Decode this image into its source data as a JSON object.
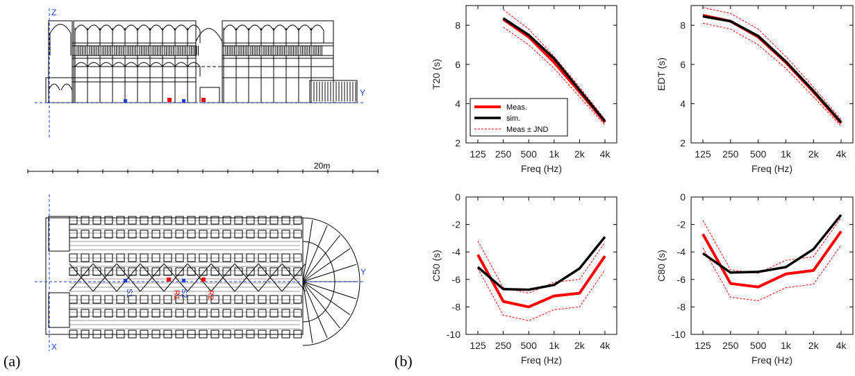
{
  "panel_a": {
    "label": "(a)",
    "elevation": {
      "z_label": "Z",
      "y_label": "Y"
    },
    "scale_label": "20m",
    "plan": {
      "x_label": "X",
      "y_label": "Y",
      "s_labels": [
        "S1",
        "S2"
      ],
      "r_labels": [
        "R1",
        "R2"
      ]
    }
  },
  "panel_b": {
    "label": "(b)"
  },
  "colors": {
    "meas": "#ff0000",
    "sim": "#000000",
    "jnd": "#ff0000",
    "drawing": "#000000",
    "axis_blue": "#1a3bd6"
  },
  "chart_data": [
    {
      "type": "line",
      "ylabel": "T20 (s)",
      "xlabel": "Freq (Hz)",
      "categories": [
        "125",
        "250",
        "500",
        "1k",
        "2k",
        "4k"
      ],
      "ylim": [
        2,
        9
      ],
      "yticks": [
        2,
        4,
        6,
        8
      ],
      "legend": {
        "position": "bottom-left",
        "entries": [
          "Meas.",
          "sim.",
          "Meas ± JND"
        ]
      },
      "series": [
        {
          "name": "Meas.",
          "style": "meas",
          "values": [
            null,
            8.3,
            7.4,
            6.1,
            4.6,
            3.05
          ]
        },
        {
          "name": "sim.",
          "style": "sim",
          "values": [
            null,
            8.35,
            7.5,
            6.3,
            4.7,
            3.1
          ]
        },
        {
          "name": "Meas ± JND",
          "style": "jnd",
          "values": [
            null,
            8.8,
            7.8,
            6.4,
            4.85,
            3.2
          ]
        },
        {
          "name": "Meas ± JND",
          "style": "jnd",
          "values": [
            null,
            7.9,
            7.0,
            5.8,
            4.35,
            2.9
          ]
        }
      ]
    },
    {
      "type": "line",
      "ylabel": "EDT (s)",
      "xlabel": "Freq (Hz)",
      "categories": [
        "125",
        "250",
        "500",
        "1k",
        "2k",
        "4k"
      ],
      "ylim": [
        2,
        9
      ],
      "yticks": [
        2,
        4,
        6,
        8
      ],
      "series": [
        {
          "style": "meas",
          "values": [
            8.5,
            8.2,
            7.4,
            6.1,
            4.6,
            3.0
          ]
        },
        {
          "style": "sim",
          "values": [
            8.45,
            8.2,
            7.45,
            6.15,
            4.65,
            3.05
          ]
        },
        {
          "style": "jnd",
          "values": [
            8.9,
            8.6,
            7.8,
            6.4,
            4.85,
            3.2
          ]
        },
        {
          "style": "jnd",
          "values": [
            8.1,
            7.8,
            7.0,
            5.8,
            4.35,
            2.85
          ]
        }
      ]
    },
    {
      "type": "line",
      "ylabel": "C50 (s)",
      "xlabel": "Freq (Hz)",
      "categories": [
        "125",
        "250",
        "500",
        "1k",
        "2k",
        "4k"
      ],
      "ylim": [
        -10,
        0
      ],
      "yticks": [
        -10,
        -8,
        -6,
        -4,
        -2,
        0
      ],
      "series": [
        {
          "style": "meas",
          "values": [
            -4.2,
            -7.6,
            -8.0,
            -7.2,
            -7.0,
            -4.3
          ]
        },
        {
          "style": "sim",
          "values": [
            -5.1,
            -6.7,
            -6.75,
            -6.4,
            -5.2,
            -2.9
          ]
        },
        {
          "style": "jnd",
          "values": [
            -3.2,
            -6.6,
            -7.0,
            -6.2,
            -6.0,
            -3.3
          ]
        },
        {
          "style": "jnd",
          "values": [
            -5.2,
            -8.6,
            -9.0,
            -8.2,
            -8.0,
            -5.3
          ]
        }
      ]
    },
    {
      "type": "line",
      "ylabel": "C80 (s)",
      "xlabel": "Freq (Hz)",
      "categories": [
        "125",
        "250",
        "500",
        "1k",
        "2k",
        "4k"
      ],
      "ylim": [
        -10,
        0
      ],
      "yticks": [
        -10,
        -8,
        -6,
        -4,
        -2,
        0
      ],
      "series": [
        {
          "style": "meas",
          "values": [
            -2.7,
            -6.3,
            -6.55,
            -5.6,
            -5.35,
            -2.5
          ]
        },
        {
          "style": "sim",
          "values": [
            -4.1,
            -5.5,
            -5.45,
            -5.1,
            -3.8,
            -1.3
          ]
        },
        {
          "style": "jnd",
          "values": [
            -1.7,
            -5.3,
            -5.55,
            -4.6,
            -4.35,
            -1.5
          ]
        },
        {
          "style": "jnd",
          "values": [
            -3.7,
            -7.3,
            -7.55,
            -6.6,
            -6.35,
            -3.5
          ]
        }
      ]
    }
  ]
}
